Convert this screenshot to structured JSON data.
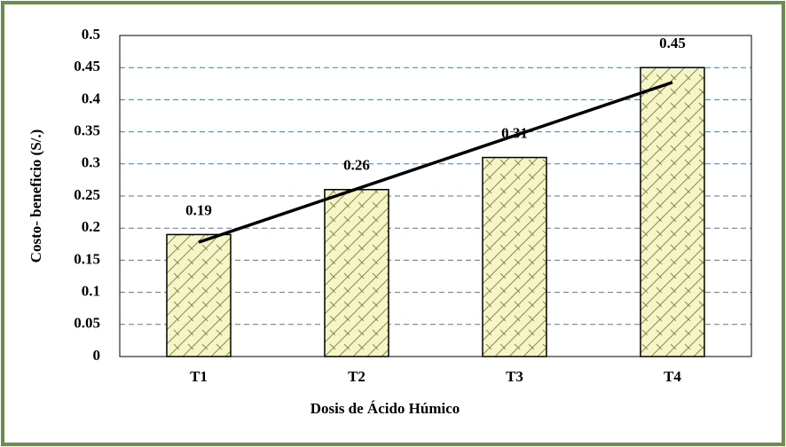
{
  "chart_data": {
    "type": "bar",
    "categories": [
      "T1",
      "T2",
      "T3",
      "T4"
    ],
    "values": [
      0.19,
      0.26,
      0.31,
      0.45
    ],
    "color": "#f5f5c8",
    "ylim": [
      0,
      0.5
    ],
    "yticks": [
      0,
      0.05,
      0.1,
      0.15,
      0.2,
      0.25,
      0.3,
      0.35,
      0.4,
      0.45,
      0.5
    ],
    "grid": true,
    "trendline": "linear",
    "xlabel": "Dosis de Ácido Húmico",
    "ylabel": "Costo- beneficio (S/.)"
  }
}
